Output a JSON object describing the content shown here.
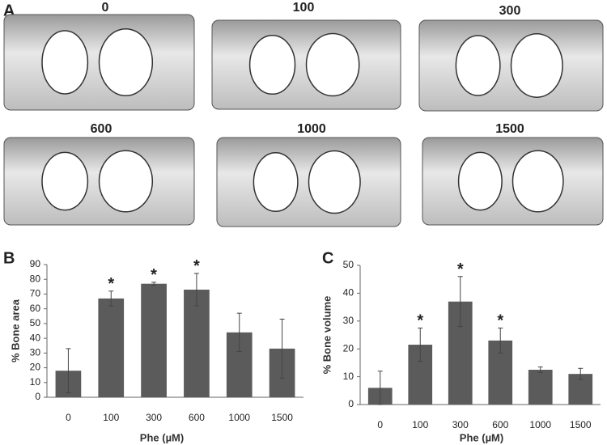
{
  "panel_a": {
    "label": "A",
    "images": [
      "0",
      "100",
      "300",
      "600",
      "1000",
      "1500"
    ]
  },
  "chart_data": [
    {
      "type": "bar",
      "panel_label": "B",
      "x_label": "Phe (µM)",
      "y_label": "% Bone area",
      "categories": [
        "0",
        "100",
        "300",
        "600",
        "1000",
        "1500"
      ],
      "series": [
        {
          "color": "#5b5b5b",
          "values": [
            18,
            67,
            77,
            73,
            44,
            33
          ],
          "errors": [
            15,
            5,
            1,
            11,
            13,
            20
          ]
        }
      ],
      "markers": [
        null,
        "*",
        "*",
        "*",
        null,
        null
      ],
      "ylim": [
        0,
        90
      ],
      "yticks": [
        0,
        10,
        20,
        30,
        40,
        50,
        60,
        70,
        80,
        90
      ],
      "grid": false
    },
    {
      "type": "bar",
      "panel_label": "C",
      "x_label": "Phe (µM)",
      "y_label": "% Bone volume",
      "categories": [
        "0",
        "100",
        "300",
        "600",
        "1000",
        "1500"
      ],
      "series": [
        {
          "color": "#5b5b5b",
          "values": [
            6,
            21.5,
            37,
            23,
            12.5,
            11
          ],
          "errors": [
            6,
            6,
            9,
            4.5,
            1,
            2
          ]
        }
      ],
      "markers": [
        null,
        "*",
        "*",
        "*",
        null,
        null
      ],
      "ylim": [
        0,
        50
      ],
      "yticks": [
        0,
        10,
        20,
        30,
        40,
        50
      ],
      "grid": false
    }
  ]
}
